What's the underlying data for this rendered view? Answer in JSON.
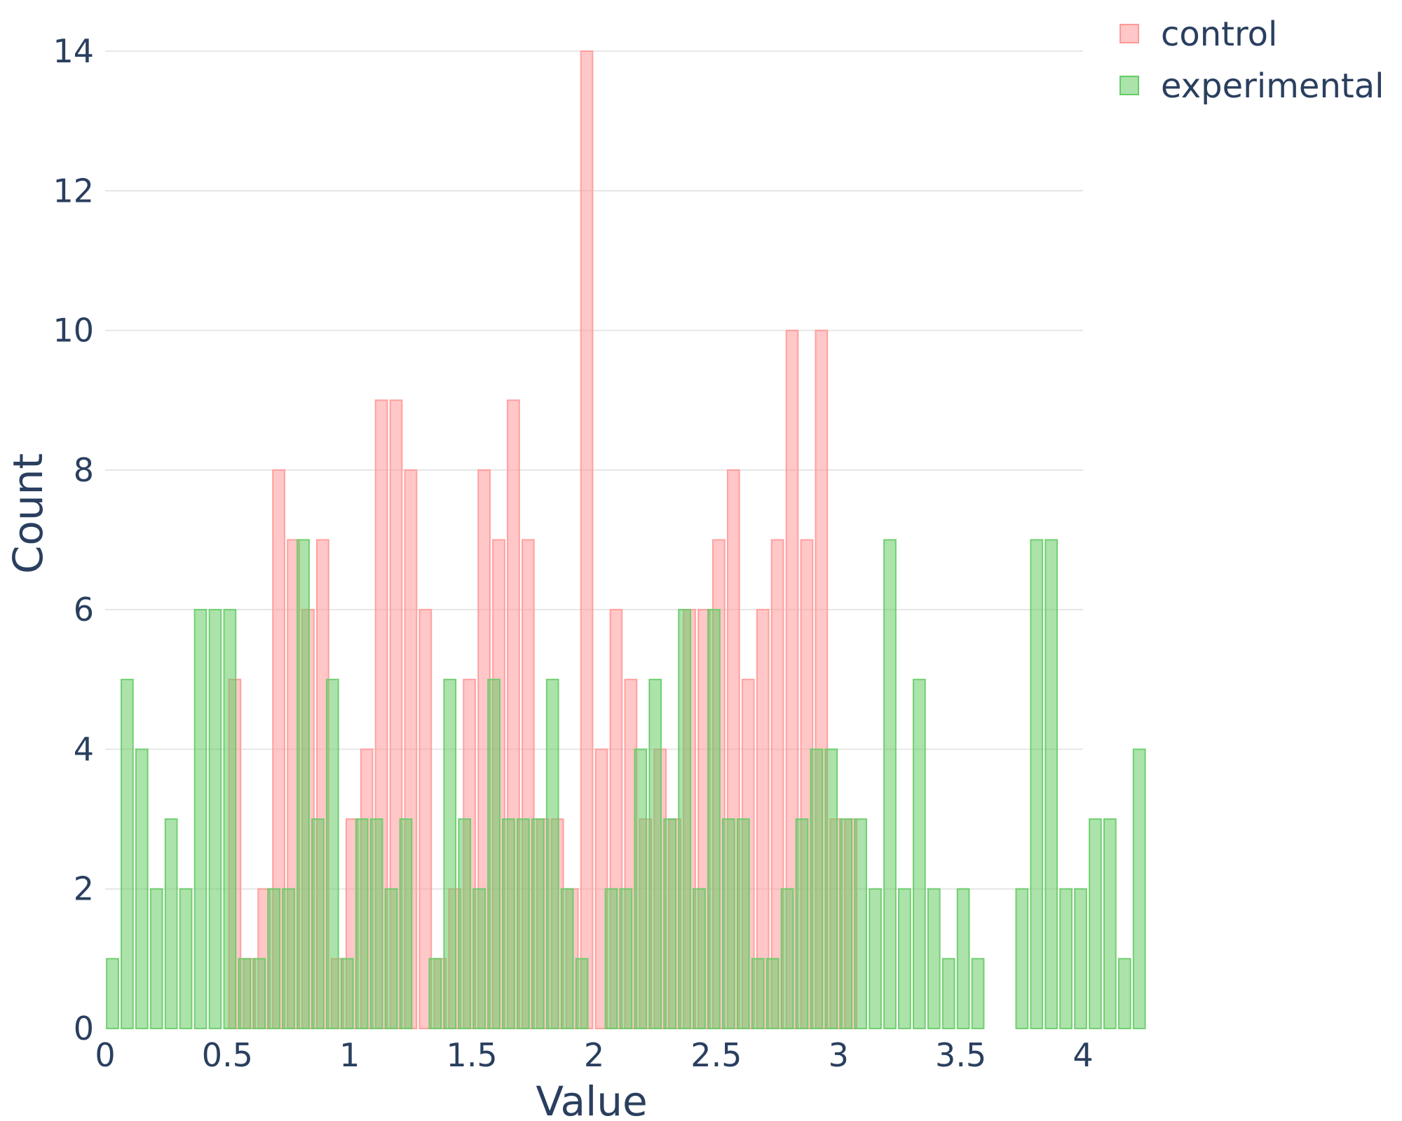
{
  "chart_data": {
    "type": "bar",
    "title": "",
    "xlabel": "Value",
    "ylabel": "Count",
    "xlim": [
      0,
      4
    ],
    "ylim": [
      0,
      14
    ],
    "xticks": [
      0,
      0.5,
      1,
      1.5,
      2,
      2.5,
      3,
      3.5,
      4
    ],
    "xtick_labels": [
      "0",
      "0.5",
      "1",
      "1.5",
      "2",
      "2.5",
      "3",
      "3.5",
      "4"
    ],
    "yticks": [
      0,
      2,
      4,
      6,
      8,
      10,
      12,
      14
    ],
    "ytick_labels": [
      "0",
      "2",
      "4",
      "6",
      "8",
      "10",
      "12",
      "14"
    ],
    "bin_width": 0.06,
    "grid": true,
    "legend_position": "top-right",
    "series": [
      {
        "name": "control",
        "color": "#ff9999",
        "x_start": 0.5,
        "values": [
          5,
          1,
          2,
          8,
          7,
          6,
          7,
          1,
          3,
          4,
          9,
          9,
          8,
          6,
          1,
          2,
          5,
          8,
          7,
          9,
          7,
          3,
          3,
          2,
          14,
          4,
          6,
          5,
          3,
          4,
          3,
          6,
          6,
          7,
          8,
          5,
          6,
          7,
          10,
          7,
          10,
          3,
          3
        ]
      },
      {
        "name": "experimental",
        "color": "#66cc66",
        "x_start": 0,
        "values": [
          1,
          5,
          4,
          2,
          3,
          2,
          6,
          6,
          6,
          1,
          1,
          2,
          2,
          7,
          3,
          5,
          1,
          3,
          3,
          2,
          3,
          0,
          1,
          5,
          3,
          2,
          5,
          3,
          3,
          3,
          5,
          2,
          1,
          0,
          2,
          2,
          4,
          5,
          3,
          6,
          2,
          6,
          3,
          3,
          1,
          1,
          2,
          3,
          4,
          4,
          3,
          3,
          2,
          7,
          2,
          5,
          2,
          1,
          2,
          1,
          0,
          0,
          2,
          7,
          7,
          2,
          2,
          3,
          3,
          1,
          4
        ]
      }
    ]
  }
}
